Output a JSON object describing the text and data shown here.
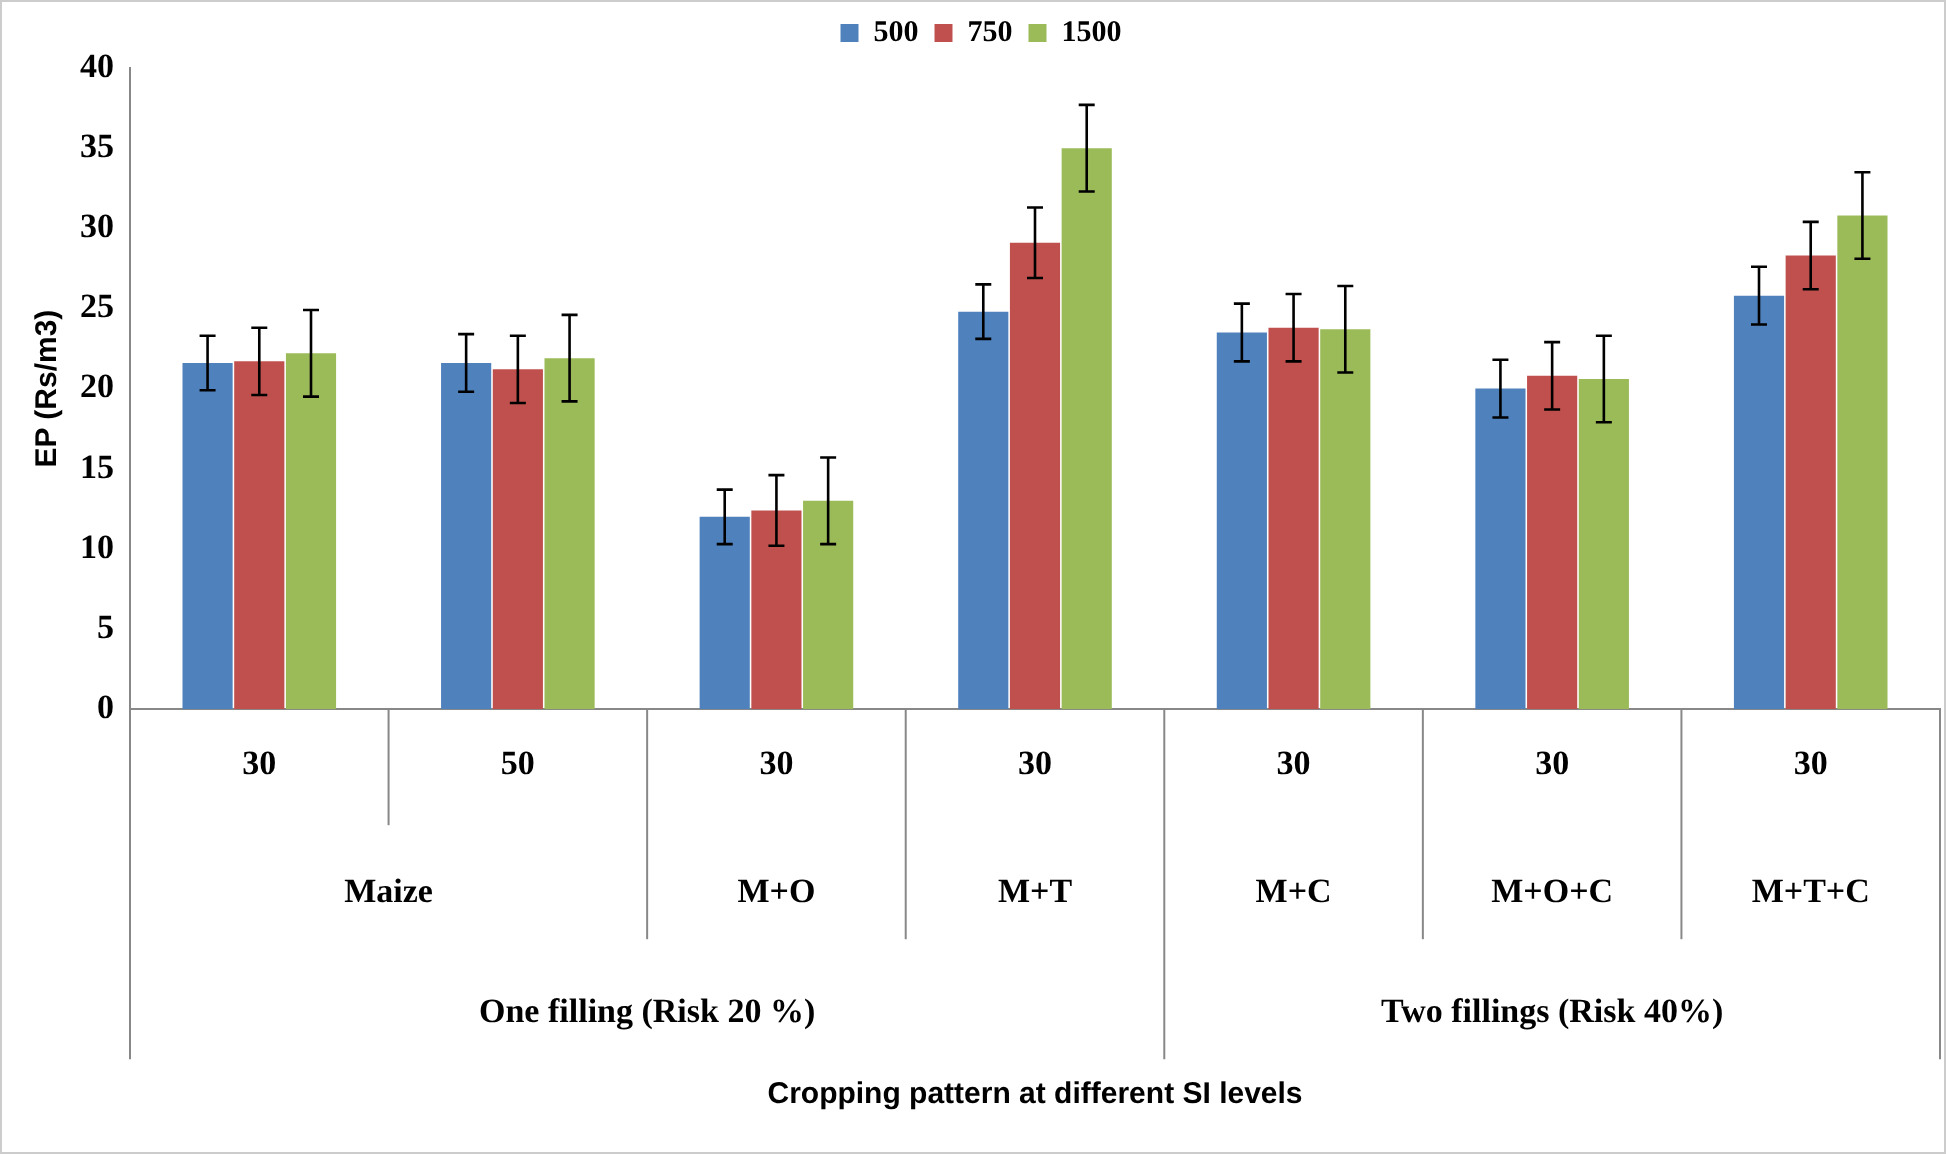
{
  "chart_data": {
    "type": "bar",
    "ylabel": "EP (Rs/m3)",
    "categories": [
      "30",
      "50",
      "30",
      "30",
      "30",
      "30",
      "30"
    ],
    "series": [
      {
        "name": "500",
        "color": "#4f81bd",
        "values": [
          21.6,
          21.6,
          12.0,
          24.8,
          23.5,
          20.0,
          25.8
        ],
        "errors": [
          1.7,
          1.8,
          1.7,
          1.7,
          1.8,
          1.8,
          1.8
        ]
      },
      {
        "name": "750",
        "color": "#c0504d",
        "values": [
          21.7,
          21.2,
          12.4,
          29.1,
          23.8,
          20.8,
          28.3
        ],
        "errors": [
          2.1,
          2.1,
          2.2,
          2.2,
          2.1,
          2.1,
          2.1
        ]
      },
      {
        "name": "1500",
        "color": "#9bbb59",
        "values": [
          22.2,
          21.9,
          13.0,
          35.0,
          23.7,
          20.6,
          30.8
        ],
        "errors": [
          2.7,
          2.7,
          2.7,
          2.7,
          2.7,
          2.7,
          2.7
        ]
      }
    ],
    "annotations": [
      "Maize",
      "M+O",
      "M+T",
      "M+C",
      "M+O+C",
      "M+T+C",
      "One filling (Risk 20 %)",
      "Two fillings (Risk 40%)",
      "Cropping pattern at different SI levels"
    ],
    "ylim": [
      0,
      40
    ],
    "yticks": [
      0,
      5,
      10,
      15,
      20,
      25,
      30,
      35,
      40
    ],
    "grid": false,
    "legend": "top"
  }
}
